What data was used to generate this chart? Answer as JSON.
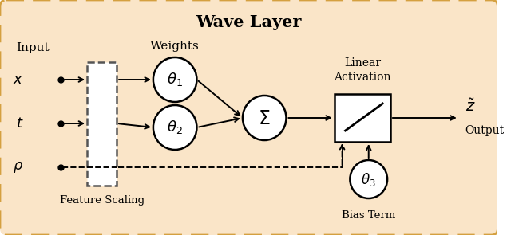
{
  "title": "Wave Layer",
  "bg_color": "#FADED8",
  "bg_fill_color": "#FAE0C8",
  "bg_edge_color": "#D4A040",
  "input_labels": [
    "x",
    "t",
    "\\rho"
  ],
  "weights_labels": [
    "\\theta_1",
    "\\theta_2"
  ],
  "sigma_label": "\\Sigma",
  "theta3_label": "\\theta_3",
  "output_label": "\\tilde{z}",
  "feature_scaling_label": "Feature Scaling",
  "weights_header": "Weights",
  "linear_activation_label": "Linear\nActivation",
  "bias_term_label": "Bias Term",
  "input_header": "Input",
  "output_footer": "Output"
}
